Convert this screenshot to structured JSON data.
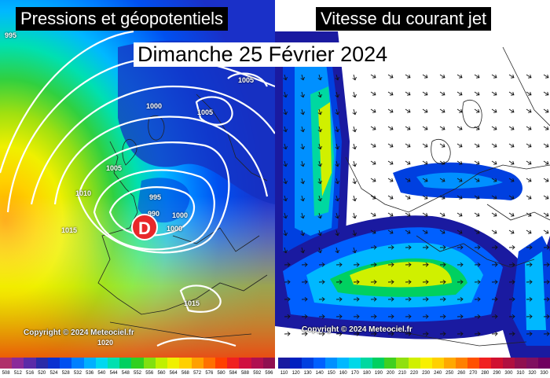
{
  "left_panel": {
    "title": "Pressions et géopotentiels",
    "copyright": "Copyright © 2024 Meteociel.fr",
    "low_label": "D",
    "isobars": [
      "995",
      "1005",
      "1000",
      "1005",
      "1005",
      "1010",
      "1015",
      "995",
      "990",
      "1000",
      "1000",
      "1015",
      "1020"
    ]
  },
  "right_panel": {
    "title": "Vitesse du courant jet",
    "copyright": "Copyright © 2024 Meteociel.fr"
  },
  "date": "Dimanche 25 Février 2024",
  "legend_left": {
    "labels": [
      "508",
      "512",
      "516",
      "520",
      "524",
      "528",
      "532",
      "536",
      "540",
      "544",
      "548",
      "552",
      "556",
      "560",
      "564",
      "568",
      "572",
      "576",
      "580",
      "584",
      "588",
      "592",
      "596"
    ],
    "colors": [
      "#b0306a",
      "#8a2a9a",
      "#5a2aa8",
      "#2a2aa8",
      "#0a30d0",
      "#0050f0",
      "#0080ff",
      "#00b0ff",
      "#00d8f0",
      "#00e0b0",
      "#00d060",
      "#30d020",
      "#80e010",
      "#c0f000",
      "#f0f000",
      "#ffd000",
      "#ffa000",
      "#ff7000",
      "#ff4000",
      "#f02020",
      "#d01040",
      "#b01050",
      "#901050"
    ]
  },
  "legend_right": {
    "labels": [
      "110",
      "120",
      "130",
      "140",
      "150",
      "160",
      "170",
      "180",
      "190",
      "200",
      "210",
      "220",
      "230",
      "240",
      "250",
      "260",
      "270",
      "280",
      "290",
      "300",
      "310",
      "320",
      "330"
    ],
    "colors": [
      "#1a1aa0",
      "#0020c0",
      "#0040e0",
      "#0060ff",
      "#0090ff",
      "#00b8ff",
      "#00d8e8",
      "#00d8a0",
      "#00d060",
      "#40d020",
      "#90e010",
      "#d0f000",
      "#f8f000",
      "#ffd000",
      "#ffa800",
      "#ff8000",
      "#ff5000",
      "#f02020",
      "#d01030",
      "#b01040",
      "#901050",
      "#801060",
      "#700060"
    ]
  }
}
